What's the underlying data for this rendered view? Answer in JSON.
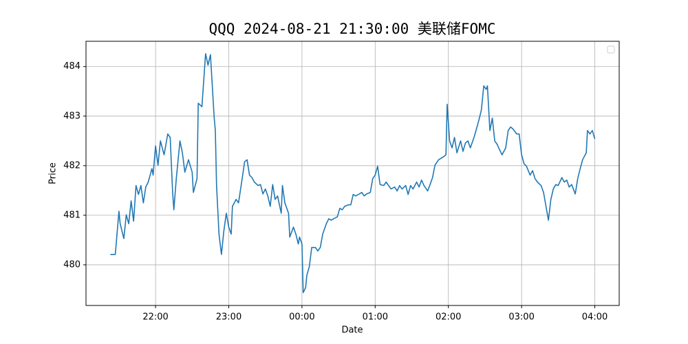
{
  "chart_data": {
    "type": "line",
    "title": "QQQ 2024-08-21 21:30:00 美联储FOMC",
    "x_label": "Date",
    "y_label": "Price",
    "x": [
      "21:23",
      "21:27",
      "21:30",
      "21:31",
      "21:34",
      "21:36",
      "21:38",
      "21:40",
      "21:42",
      "21:44",
      "21:46",
      "21:48",
      "21:50",
      "21:52",
      "21:54",
      "21:57",
      "21:58",
      "22:00",
      "22:02",
      "22:04",
      "22:07",
      "22:10",
      "22:12",
      "22:14",
      "22:15",
      "22:17",
      "22:20",
      "22:22",
      "22:24",
      "22:27",
      "22:30",
      "22:31",
      "22:34",
      "22:35",
      "22:38",
      "22:41",
      "22:43",
      "22:45",
      "22:48",
      "22:49",
      "22:50",
      "22:52",
      "22:54",
      "22:56",
      "22:58",
      "23:00",
      "23:02",
      "23:03",
      "23:06",
      "23:08",
      "23:11",
      "23:13",
      "23:15",
      "23:17",
      "23:19",
      "23:21",
      "23:24",
      "23:26",
      "23:28",
      "23:30",
      "23:32",
      "23:34",
      "23:36",
      "23:38",
      "23:40",
      "23:43",
      "23:44",
      "23:46",
      "23:49",
      "23:50",
      "23:53",
      "23:55",
      "23:57",
      "23:58",
      "00:00",
      "00:01",
      "00:03",
      "00:04",
      "00:06",
      "00:08",
      "00:11",
      "00:13",
      "00:15",
      "00:17",
      "00:20",
      "00:22",
      "00:24",
      "00:26",
      "00:29",
      "00:31",
      "00:33",
      "00:35",
      "00:38",
      "00:40",
      "00:42",
      "00:44",
      "00:47",
      "00:49",
      "00:51",
      "00:53",
      "00:56",
      "00:58",
      "01:00",
      "01:02",
      "01:04",
      "01:07",
      "01:09",
      "01:11",
      "01:13",
      "01:16",
      "01:18",
      "01:20",
      "01:22",
      "01:25",
      "01:27",
      "01:29",
      "01:31",
      "01:34",
      "01:36",
      "01:38",
      "01:40",
      "01:43",
      "01:45",
      "01:47",
      "01:49",
      "01:52",
      "01:54",
      "01:56",
      "01:58",
      "01:59",
      "02:01",
      "02:03",
      "02:05",
      "02:07",
      "02:10",
      "02:12",
      "02:14",
      "02:16",
      "02:18",
      "02:21",
      "02:23",
      "02:25",
      "02:27",
      "02:29",
      "02:31",
      "02:32",
      "02:34",
      "02:36",
      "02:38",
      "02:40",
      "02:42",
      "02:44",
      "02:47",
      "02:49",
      "02:51",
      "02:53",
      "02:56",
      "02:58",
      "03:00",
      "03:02",
      "03:04",
      "03:07",
      "03:09",
      "03:11",
      "03:13",
      "03:16",
      "03:18",
      "03:20",
      "03:22",
      "03:24",
      "03:26",
      "03:28",
      "03:30",
      "03:33",
      "03:35",
      "03:37",
      "03:39",
      "03:41",
      "03:44",
      "03:46",
      "03:48",
      "03:50",
      "03:53",
      "03:54",
      "03:56",
      "03:58",
      "04:00"
    ],
    "series": [
      {
        "color": "#1f77b4",
        "values": [
          480.21,
          480.21,
          481.08,
          480.83,
          480.53,
          481.01,
          480.83,
          481.29,
          480.88,
          481.6,
          481.42,
          481.6,
          481.25,
          481.57,
          481.67,
          481.94,
          481.81,
          482.4,
          482.01,
          482.5,
          482.22,
          482.64,
          482.57,
          481.46,
          481.11,
          481.74,
          482.5,
          482.26,
          481.87,
          482.12,
          481.87,
          481.46,
          481.74,
          483.26,
          483.19,
          484.26,
          484.03,
          484.24,
          482.99,
          482.71,
          481.6,
          480.62,
          480.21,
          480.69,
          481.04,
          480.76,
          480.62,
          481.18,
          481.32,
          481.25,
          481.74,
          482.08,
          482.12,
          481.81,
          481.76,
          481.67,
          481.6,
          481.62,
          481.43,
          481.53,
          481.39,
          481.18,
          481.62,
          481.32,
          481.39,
          481.04,
          481.6,
          481.25,
          481.04,
          480.56,
          480.76,
          480.62,
          480.42,
          480.56,
          480.42,
          479.44,
          479.54,
          479.79,
          479.96,
          480.35,
          480.35,
          480.28,
          480.35,
          480.62,
          480.83,
          480.93,
          480.9,
          480.93,
          480.97,
          481.14,
          481.11,
          481.18,
          481.21,
          481.21,
          481.42,
          481.39,
          481.43,
          481.46,
          481.39,
          481.43,
          481.46,
          481.74,
          481.81,
          481.99,
          481.62,
          481.6,
          481.67,
          481.6,
          481.53,
          481.57,
          481.49,
          481.6,
          481.53,
          481.6,
          481.42,
          481.6,
          481.53,
          481.67,
          481.57,
          481.71,
          481.6,
          481.49,
          481.62,
          481.76,
          482.01,
          482.12,
          482.15,
          482.18,
          482.22,
          483.24,
          482.5,
          482.36,
          482.57,
          482.26,
          482.5,
          482.29,
          482.46,
          482.5,
          482.36,
          482.57,
          482.74,
          482.92,
          483.12,
          483.61,
          483.54,
          483.61,
          482.71,
          482.96,
          482.5,
          482.43,
          482.32,
          482.22,
          482.36,
          482.71,
          482.78,
          482.74,
          482.64,
          482.64,
          482.22,
          482.04,
          481.99,
          481.81,
          481.9,
          481.74,
          481.67,
          481.6,
          481.46,
          481.18,
          480.9,
          481.32,
          481.53,
          481.62,
          481.6,
          481.76,
          481.67,
          481.71,
          481.57,
          481.62,
          481.43,
          481.74,
          481.94,
          482.12,
          482.26,
          482.71,
          482.64,
          482.71,
          482.54
        ]
      }
    ],
    "xlim": [
      "21:03",
      "04:20"
    ],
    "xticks": [
      "22:00",
      "23:00",
      "00:00",
      "01:00",
      "02:00",
      "03:00",
      "04:00"
    ],
    "ylim": [
      479.18,
      484.51
    ],
    "yticks": [
      480,
      481,
      482,
      483,
      484
    ],
    "grid": true
  }
}
